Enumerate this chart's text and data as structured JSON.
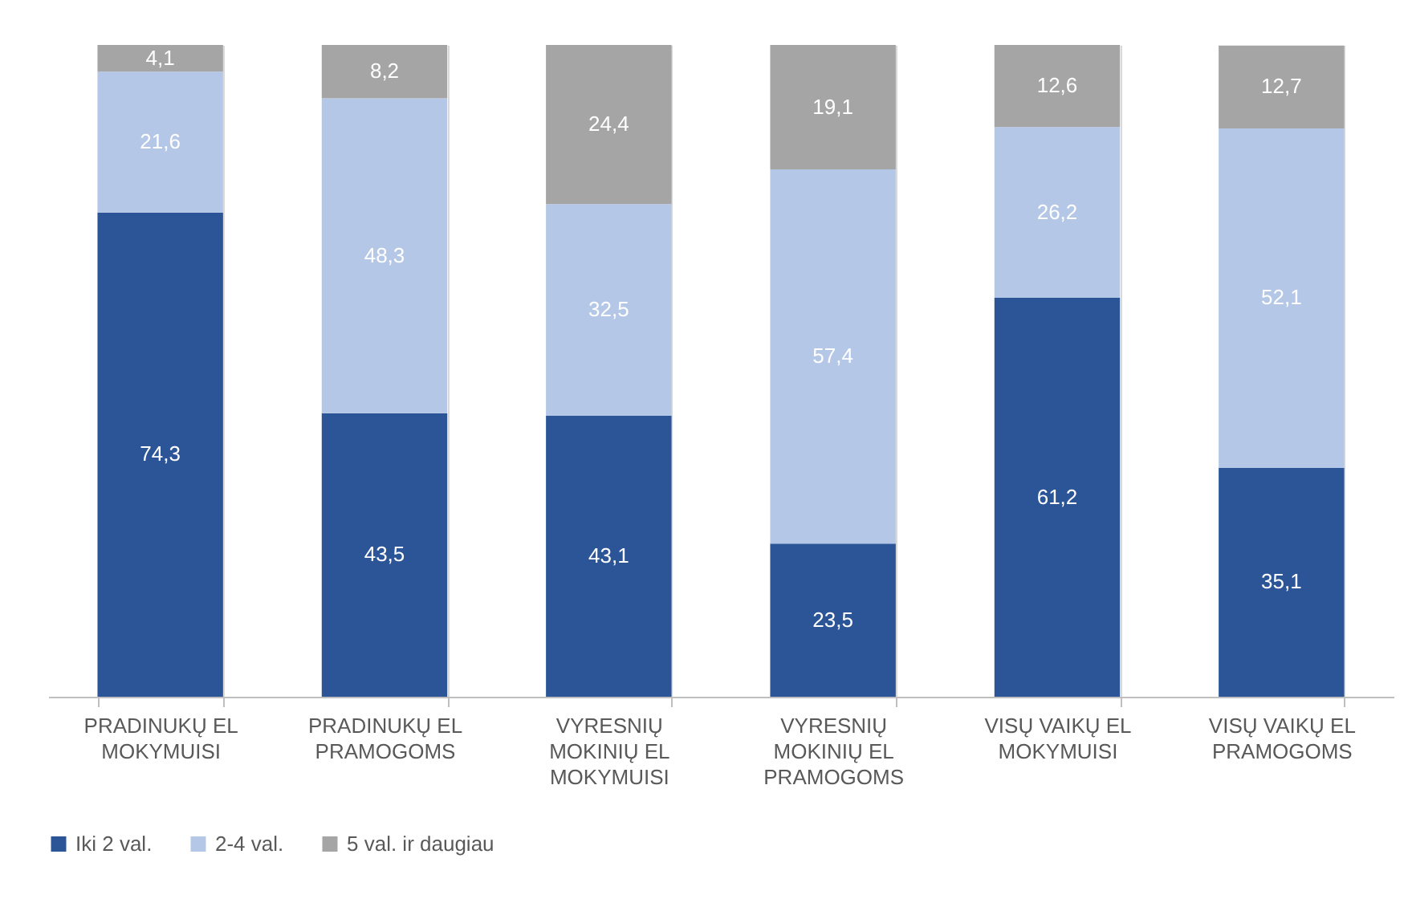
{
  "chart_data": {
    "type": "bar",
    "stacked": true,
    "grid": "x",
    "legend": "bottom",
    "categories": [
      "PRADINUKŲ EL MOKYMUISI",
      "PRADINUKŲ EL PRAMOGOMS",
      "VYRESNIŲ MOKINIŲ EL MOKYMUISI",
      "VYRESNIŲ MOKINIŲ EL PRAMOGOMS",
      "VISŲ VAIKŲ EL MOKYMUISI",
      "VISŲ VAIKŲ EL PRAMOGOMS"
    ],
    "series": [
      {
        "name": "Iki 2 val.",
        "color": "#2b5597",
        "values": [
          74.3,
          43.5,
          43.1,
          23.5,
          61.2,
          35.1
        ],
        "value_labels": [
          "74,3",
          "43,5",
          "43,1",
          "23,5",
          "61,2",
          "35,1"
        ]
      },
      {
        "name": "2-4 val.",
        "color": "#b4c7e7",
        "values": [
          21.6,
          48.3,
          32.5,
          57.4,
          26.2,
          52.1
        ],
        "value_labels": [
          "21,6",
          "48,3",
          "32,5",
          "57,4",
          "26,2",
          "52,1"
        ]
      },
      {
        "name": "5 val. ir daugiau",
        "color": "#a5a5a5",
        "values": [
          4.1,
          8.2,
          24.4,
          19.1,
          12.6,
          12.7
        ],
        "value_labels": [
          "4,1",
          "8,2",
          "24,4",
          "19,1",
          "12,6",
          "12,7"
        ]
      }
    ]
  }
}
